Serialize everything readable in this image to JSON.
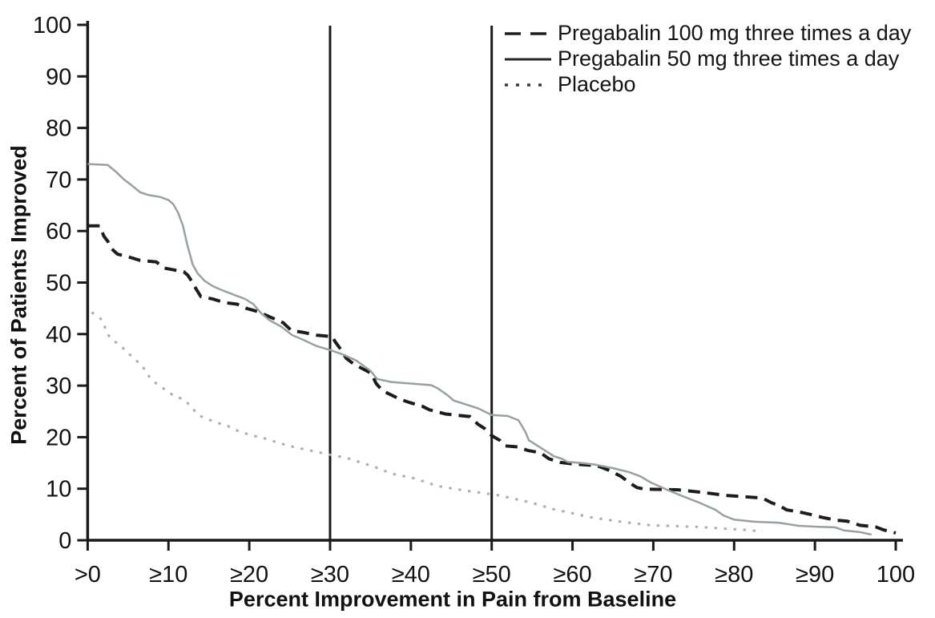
{
  "figure": {
    "background": "#ffffff",
    "text_color": "#111111",
    "axis_color": "#1a1a1a"
  },
  "chart_data": {
    "type": "line",
    "title": "",
    "xlabel": "Percent Improvement in Pain from Baseline",
    "ylabel": "Percent of Patients Improved",
    "xlim": [
      0,
      100
    ],
    "ylim": [
      0,
      100
    ],
    "grid": false,
    "legend_position": "top-right-inside",
    "x_ticks": [
      {
        "value": 0,
        "label": ">0"
      },
      {
        "value": 10,
        "label": "≥10"
      },
      {
        "value": 20,
        "label": "≥20"
      },
      {
        "value": 30,
        "label": "≥30"
      },
      {
        "value": 40,
        "label": "≥40"
      },
      {
        "value": 50,
        "label": "≥50"
      },
      {
        "value": 60,
        "label": "≥60"
      },
      {
        "value": 70,
        "label": "≥70"
      },
      {
        "value": 80,
        "label": "≥80"
      },
      {
        "value": 90,
        "label": "≥90"
      },
      {
        "value": 100,
        "label": "100"
      }
    ],
    "y_ticks": [
      {
        "value": 0,
        "label": "0"
      },
      {
        "value": 10,
        "label": "10"
      },
      {
        "value": 20,
        "label": "20"
      },
      {
        "value": 30,
        "label": "30"
      },
      {
        "value": 40,
        "label": "40"
      },
      {
        "value": 50,
        "label": "50"
      },
      {
        "value": 60,
        "label": "60"
      },
      {
        "value": 70,
        "label": "70"
      },
      {
        "value": 80,
        "label": "80"
      },
      {
        "value": 90,
        "label": "90"
      },
      {
        "value": 100,
        "label": "100"
      }
    ],
    "reference_lines": [
      {
        "axis": "x",
        "value": 30
      },
      {
        "axis": "x",
        "value": 50
      }
    ],
    "series": [
      {
        "name": "Pregabalin 100 mg three times a day",
        "style": "dashed",
        "color": "#1c1c1c",
        "width": 4,
        "dash": "15 9",
        "legend": {
          "color": "#1f1f1f",
          "dash": "20 12",
          "width": 3.5
        },
        "points": [
          [
            0,
            61
          ],
          [
            1.5,
            61
          ],
          [
            2,
            59
          ],
          [
            2.5,
            58
          ],
          [
            3,
            56.5
          ],
          [
            3.7,
            55.5
          ],
          [
            5,
            55
          ],
          [
            6.5,
            54.3
          ],
          [
            8.5,
            54
          ],
          [
            9.5,
            52.8
          ],
          [
            11.9,
            52.1
          ],
          [
            12.4,
            51.4
          ],
          [
            12.9,
            50.2
          ],
          [
            13.4,
            48.8
          ],
          [
            14,
            47.3
          ],
          [
            15.5,
            46.8
          ],
          [
            17,
            46.1
          ],
          [
            18.5,
            45.8
          ],
          [
            19.6,
            45
          ],
          [
            21,
            44.4
          ],
          [
            22.9,
            43.1
          ],
          [
            24.2,
            42.2
          ],
          [
            25.2,
            40.7
          ],
          [
            26.8,
            40.3
          ],
          [
            28.3,
            39.8
          ],
          [
            30.3,
            39.5
          ],
          [
            30.6,
            38.6
          ],
          [
            31.2,
            37.3
          ],
          [
            32,
            35.3
          ],
          [
            33,
            34.1
          ],
          [
            34,
            33.3
          ],
          [
            35.1,
            32.4
          ],
          [
            35.7,
            30.4
          ],
          [
            36.5,
            29
          ],
          [
            37.3,
            28.4
          ],
          [
            38.6,
            27.4
          ],
          [
            39.7,
            26.8
          ],
          [
            41.4,
            26
          ],
          [
            42.3,
            25.3
          ],
          [
            44.3,
            24.5
          ],
          [
            47.3,
            24
          ],
          [
            48.3,
            22.5
          ],
          [
            49.1,
            21.7
          ],
          [
            50,
            20.3
          ],
          [
            51,
            19.4
          ],
          [
            51.7,
            18.3
          ],
          [
            53.3,
            18.1
          ],
          [
            54.5,
            17.4
          ],
          [
            56,
            17
          ],
          [
            57.1,
            15.8
          ],
          [
            58.5,
            15.1
          ],
          [
            60,
            14.8
          ],
          [
            63,
            14.5
          ],
          [
            64.5,
            13.6
          ],
          [
            66,
            12.4
          ],
          [
            67,
            11.2
          ],
          [
            68,
            10.2
          ],
          [
            69,
            9.9
          ],
          [
            73,
            9.8
          ],
          [
            76,
            9.3
          ],
          [
            79,
            8.7
          ],
          [
            83.5,
            8.2
          ],
          [
            84.6,
            7.3
          ],
          [
            85.6,
            6.7
          ],
          [
            86.5,
            5.9
          ],
          [
            88,
            5.5
          ],
          [
            89.5,
            5
          ],
          [
            91,
            4.4
          ],
          [
            92.6,
            3.9
          ],
          [
            94,
            3.7
          ],
          [
            95.6,
            2.9
          ],
          [
            97.5,
            2.6
          ],
          [
            98.5,
            2
          ],
          [
            100,
            1.4
          ]
        ]
      },
      {
        "name": "Pregabalin 50 mg three times a day",
        "style": "solid",
        "color": "#96a29e",
        "width": 2.5,
        "dash": "",
        "legend": {
          "color": "#262626",
          "dash": "",
          "width": 3
        },
        "points": [
          [
            0,
            73
          ],
          [
            2.5,
            72.8
          ],
          [
            3.5,
            71.5
          ],
          [
            4.5,
            70
          ],
          [
            5.5,
            68.8
          ],
          [
            6.5,
            67.5
          ],
          [
            7.5,
            67
          ],
          [
            9,
            66.6
          ],
          [
            10,
            66
          ],
          [
            10.6,
            65.2
          ],
          [
            11.2,
            63.5
          ],
          [
            11.8,
            61
          ],
          [
            12.3,
            57.5
          ],
          [
            13,
            53.5
          ],
          [
            13.6,
            51.8
          ],
          [
            14.5,
            50.3
          ],
          [
            15.5,
            49.3
          ],
          [
            16.5,
            48.6
          ],
          [
            18,
            47.7
          ],
          [
            19.5,
            46.8
          ],
          [
            20.5,
            45.8
          ],
          [
            21.5,
            44
          ],
          [
            22.5,
            42.7
          ],
          [
            24,
            41.4
          ],
          [
            25.3,
            39.8
          ],
          [
            26.8,
            38.8
          ],
          [
            28.3,
            37.7
          ],
          [
            30,
            36.9
          ],
          [
            31.5,
            36.1
          ],
          [
            33.2,
            34.9
          ],
          [
            35,
            32.9
          ],
          [
            35.8,
            31.3
          ],
          [
            37.6,
            30.7
          ],
          [
            40,
            30.4
          ],
          [
            42.5,
            30.1
          ],
          [
            43.3,
            29.5
          ],
          [
            44.5,
            28.2
          ],
          [
            45.3,
            27.1
          ],
          [
            46.7,
            26.4
          ],
          [
            48.3,
            25.6
          ],
          [
            50,
            24.3
          ],
          [
            52,
            24.1
          ],
          [
            53.3,
            23.3
          ],
          [
            53.7,
            22.3
          ],
          [
            54.2,
            20.9
          ],
          [
            54.6,
            19.4
          ],
          [
            55.4,
            18.6
          ],
          [
            56.6,
            17.4
          ],
          [
            57.7,
            16.3
          ],
          [
            58.7,
            15.8
          ],
          [
            59.4,
            15.2
          ],
          [
            61,
            15
          ],
          [
            62.7,
            14.7
          ],
          [
            65,
            14
          ],
          [
            67,
            13.2
          ],
          [
            68.4,
            12.4
          ],
          [
            69.7,
            11.2
          ],
          [
            71.7,
            9.8
          ],
          [
            73.7,
            8.5
          ],
          [
            75.7,
            7.3
          ],
          [
            77.7,
            5.9
          ],
          [
            78.7,
            4.8
          ],
          [
            80,
            4
          ],
          [
            82.5,
            3.6
          ],
          [
            85.5,
            3.4
          ],
          [
            88,
            2.8
          ],
          [
            90.5,
            2.6
          ],
          [
            92.5,
            2.5
          ],
          [
            93.6,
            1.9
          ],
          [
            95.5,
            1.6
          ],
          [
            97,
            1.1
          ]
        ]
      },
      {
        "name": "Placebo",
        "style": "dotted",
        "color": "#a9b1ad",
        "width": 3,
        "dash": "3.5 8.5",
        "legend": {
          "color": "#3a3a3a",
          "dash": "4 10",
          "width": 3.5
        },
        "points": [
          [
            0.5,
            44.2
          ],
          [
            1,
            43.7
          ],
          [
            1.8,
            42.7
          ],
          [
            2.1,
            41.5
          ],
          [
            2.4,
            40
          ],
          [
            3.5,
            38.4
          ],
          [
            4.2,
            37.6
          ],
          [
            4.8,
            36.5
          ],
          [
            5.4,
            35.8
          ],
          [
            6.2,
            34.6
          ],
          [
            6.7,
            34
          ],
          [
            7.4,
            32.2
          ],
          [
            7.8,
            31.4
          ],
          [
            8.5,
            30.4
          ],
          [
            9.7,
            29.1
          ],
          [
            10.8,
            27.9
          ],
          [
            12,
            27.3
          ],
          [
            13,
            25.5
          ],
          [
            13.8,
            24.2
          ],
          [
            15.8,
            22.9
          ],
          [
            17.3,
            22.2
          ],
          [
            18.9,
            21
          ],
          [
            20.7,
            20.2
          ],
          [
            22,
            19.7
          ],
          [
            24.9,
            18.3
          ],
          [
            27,
            17.6
          ],
          [
            30,
            16.6
          ],
          [
            32,
            16
          ],
          [
            35.4,
            14.3
          ],
          [
            37.7,
            12.9
          ],
          [
            40.2,
            12.1
          ],
          [
            43.4,
            10.5
          ],
          [
            46.9,
            9.6
          ],
          [
            50.6,
            8.8
          ],
          [
            54.9,
            7.3
          ],
          [
            57.7,
            6
          ],
          [
            62.4,
            4.4
          ],
          [
            66,
            3.6
          ],
          [
            69.7,
            2.9
          ],
          [
            75.4,
            2.6
          ],
          [
            81.4,
            2
          ],
          [
            83.5,
            1.7
          ]
        ]
      }
    ]
  }
}
